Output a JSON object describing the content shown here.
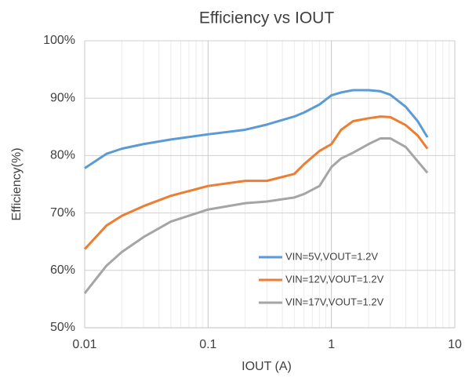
{
  "chart_data": {
    "type": "line",
    "title": "Efficiency vs IOUT",
    "x_label": "IOUT (A)",
    "y_label": "Efficiency(%)",
    "x_scale": "log",
    "grid": true,
    "legend": "lower right",
    "x": [
      0.01,
      0.015,
      0.02,
      0.03,
      0.05,
      0.1,
      0.2,
      0.3,
      0.5,
      0.6,
      0.8,
      1,
      1.2,
      1.5,
      2,
      2.5,
      3,
      4,
      5,
      6
    ],
    "xlim": [
      0.01,
      10
    ],
    "xticks": [
      0.01,
      0.1,
      1,
      10
    ],
    "ylim": [
      50,
      100
    ],
    "yticks": [
      {
        "value": 50,
        "label": "50%"
      },
      {
        "value": 60,
        "label": "60%"
      },
      {
        "value": 70,
        "label": "70%"
      },
      {
        "value": 80,
        "label": "80%"
      },
      {
        "value": 90,
        "label": "90%"
      },
      {
        "value": 100,
        "label": "100%"
      }
    ],
    "series": [
      {
        "name": "VIN=5V,VOUT=1.2V",
        "color": "#5b9bd5",
        "values": [
          77.8,
          80.3,
          81.2,
          82.0,
          82.8,
          83.7,
          84.5,
          85.4,
          86.8,
          87.5,
          88.9,
          90.5,
          91.0,
          91.4,
          91.4,
          91.2,
          90.6,
          88.5,
          86.0,
          83.2
        ]
      },
      {
        "name": "VIN=12V,VOUT=1.2V",
        "color": "#ed7d31",
        "values": [
          63.7,
          67.8,
          69.5,
          71.2,
          73.0,
          74.7,
          75.6,
          75.6,
          76.8,
          78.5,
          80.8,
          82.0,
          84.5,
          86.0,
          86.5,
          86.8,
          86.7,
          85.3,
          83.5,
          81.2
        ]
      },
      {
        "name": "VIN=17V,VOUT=1.2V",
        "color": "#a5a5a5",
        "values": [
          56.0,
          60.8,
          63.2,
          65.8,
          68.5,
          70.6,
          71.7,
          72.0,
          72.7,
          73.3,
          74.7,
          78.0,
          79.5,
          80.5,
          82.0,
          83.0,
          83.0,
          81.5,
          79.0,
          77.0
        ]
      }
    ]
  }
}
